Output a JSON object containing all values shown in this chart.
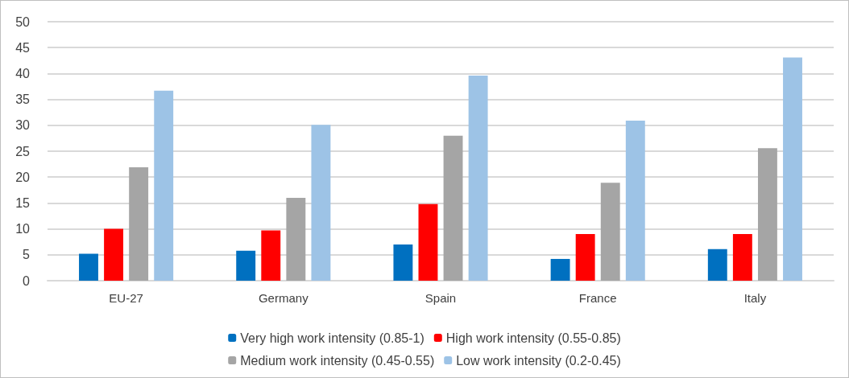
{
  "chart_data": {
    "type": "bar",
    "categories": [
      "EU-27",
      "Germany",
      "Spain",
      "France",
      "Italy"
    ],
    "series": [
      {
        "name": "Very high work intensity (0.85-1)",
        "color": "#0070c0",
        "values": [
          5.2,
          5.8,
          7,
          4.2,
          6.1
        ]
      },
      {
        "name": "High work intensity (0.55-0.85)",
        "color": "#ff0000",
        "values": [
          10,
          9.7,
          14.8,
          9,
          9
        ]
      },
      {
        "name": "Medium work intensity (0.45-0.55)",
        "color": "#a5a5a5",
        "values": [
          21.9,
          16,
          28,
          18.9,
          25.6
        ]
      },
      {
        "name": "Low work intensity (0.2-0.45)",
        "color": "#9dc3e6",
        "values": [
          36.7,
          30.1,
          39.6,
          30.9,
          43.1
        ]
      }
    ],
    "ylim": [
      0,
      50
    ],
    "yticks": [
      0,
      5,
      10,
      15,
      20,
      25,
      30,
      35,
      40,
      45,
      50
    ],
    "grid": "y",
    "legend": "bottom"
  }
}
